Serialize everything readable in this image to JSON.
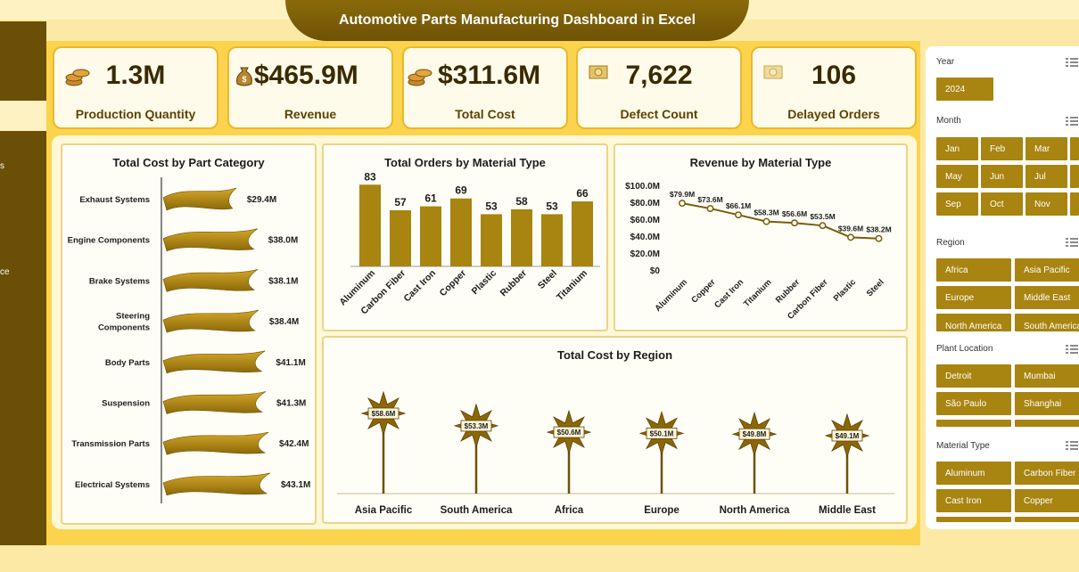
{
  "header": {
    "title": "Automotive Parts Manufacturing Dashboard in Excel"
  },
  "sidebar": {
    "fragments": [
      "s",
      "ce"
    ]
  },
  "kpis": [
    {
      "value": "1.3M",
      "label": "Production Quantity",
      "icon": "coins-icon"
    },
    {
      "value": "$465.9M",
      "label": "Revenue",
      "icon": "money-bag-icon"
    },
    {
      "value": "$311.6M",
      "label": "Total Cost",
      "icon": "coins-icon"
    },
    {
      "value": "7,622",
      "label": "Defect Count",
      "icon": "banknote-icon"
    },
    {
      "value": "106",
      "label": "Delayed Orders",
      "icon": "banknote-icon"
    }
  ],
  "slicers": {
    "year": {
      "title": "Year",
      "items": [
        "2024"
      ]
    },
    "month": {
      "title": "Month",
      "items": [
        "Jan",
        "Feb",
        "Mar",
        "May",
        "Jun",
        "Jul",
        "Sep",
        "Oct",
        "Nov"
      ]
    },
    "region": {
      "title": "Region",
      "items": [
        "Africa",
        "Asia Pacific",
        "Europe",
        "Middle East",
        "North America",
        "South America"
      ]
    },
    "plant": {
      "title": "Plant Location",
      "items": [
        "Detroit",
        "Mumbai",
        "São Paulo",
        "Shanghai"
      ]
    },
    "material": {
      "title": "Material Type",
      "items": [
        "Aluminum",
        "Carbon Fiber",
        "Cast Iron",
        "Copper"
      ]
    }
  },
  "colors": {
    "gold": "#a88410",
    "dark_gold": "#6b4f06",
    "line": "#7a5d08"
  },
  "chart_data": [
    {
      "type": "bar",
      "orientation": "horizontal",
      "title": "Total Cost by Part Category",
      "categories": [
        "Exhaust Systems",
        "Engine Components",
        "Brake Systems",
        "Steering Components",
        "Body Parts",
        "Suspension",
        "Transmission Parts",
        "Electrical Systems"
      ],
      "values": [
        29.4,
        38.0,
        38.1,
        38.4,
        41.1,
        41.3,
        42.4,
        43.1
      ],
      "data_labels": [
        "$29.4M",
        "$38.0M",
        "$38.1M",
        "$38.4M",
        "$41.1M",
        "$41.3M",
        "$42.4M",
        "$43.1M"
      ]
    },
    {
      "type": "bar",
      "title": "Total Orders by Material Type",
      "categories": [
        "Aluminum",
        "Carbon Fiber",
        "Cast Iron",
        "Copper",
        "Plastic",
        "Rubber",
        "Steel",
        "Titanium"
      ],
      "values": [
        83,
        57,
        61,
        69,
        53,
        58,
        53,
        66
      ],
      "ylim": [
        0,
        95
      ]
    },
    {
      "type": "line",
      "title": "Revenue  by Material Type",
      "categories": [
        "Aluminum",
        "Copper",
        "Cast Iron",
        "Titanium",
        "Rubber",
        "Carbon Fiber",
        "Plastic",
        "Steel"
      ],
      "values": [
        79.9,
        73.6,
        66.1,
        58.3,
        56.6,
        53.5,
        39.6,
        38.2
      ],
      "data_labels": [
        "$79.9M",
        "$73.6M",
        "$66.1M",
        "$58.3M",
        "$56.6M",
        "$53.5M",
        "$39.6M",
        "$38.2M"
      ],
      "yticks": [
        "$0",
        "$20.0M",
        "$40.0M",
        "$60.0M",
        "$80.0M",
        "$100.0M"
      ],
      "ylim": [
        0,
        100
      ]
    },
    {
      "type": "bar",
      "title": "Total Cost by Region",
      "categories": [
        "Asia Pacific",
        "South America",
        "Africa",
        "Europe",
        "North America",
        "Middle East"
      ],
      "values": [
        58.6,
        53.3,
        50.6,
        50.1,
        49.8,
        49.1
      ],
      "data_labels": [
        "$58.6M",
        "$53.3M",
        "$50.6M",
        "$50.1M",
        "$49.8M",
        "$49.1M"
      ]
    }
  ]
}
